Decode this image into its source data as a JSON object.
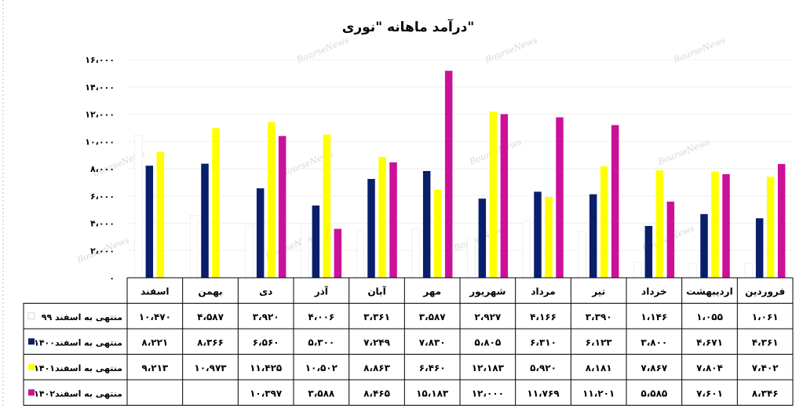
{
  "watermark": "BourseNews",
  "chart_data": {
    "type": "bar",
    "title": "درآمد ماهانه \"نوری\"",
    "xlabel": "",
    "ylabel": "",
    "ylim": [
      0,
      16000
    ],
    "y_ticks": [
      0,
      2000,
      4000,
      6000,
      8000,
      10000,
      12000,
      14000,
      16000
    ],
    "y_tick_labels": [
      "۰",
      "۲،۰۰۰",
      "۴،۰۰۰",
      "۶،۰۰۰",
      "۸،۰۰۰",
      "۱۰،۰۰۰",
      "۱۲،۰۰۰",
      "۱۴،۰۰۰",
      "۱۶،۰۰۰"
    ],
    "grid": true,
    "legend": "in-table",
    "categories": [
      "فروردین",
      "اردیبهشت",
      "خرداد",
      "تیر",
      "مرداد",
      "شهریور",
      "مهر",
      "آبان",
      "آذر",
      "دی",
      "بهمن",
      "اسفند"
    ],
    "series": [
      {
        "name": "منتهی به اسفند ۹۹",
        "color": "#ffffff",
        "values": [
          1061,
          1055,
          1146,
          3390,
          4166,
          2927,
          3587,
          3361,
          4006,
          3920,
          4587,
          10470
        ],
        "labels": [
          "۱،۰۶۱",
          "۱،۰۵۵",
          "۱،۱۴۶",
          "۳،۳۹۰",
          "۴،۱۶۶",
          "۲،۹۲۷",
          "۳،۵۸۷",
          "۳،۳۶۱",
          "۴،۰۰۶",
          "۳،۹۲۰",
          "۴،۵۸۷",
          "۱۰،۴۷۰"
        ]
      },
      {
        "name": "منتهی به اسفند۱۴۰۰",
        "color": "#0a1f6b",
        "values": [
          4361,
          4671,
          3800,
          6123,
          6310,
          5805,
          7830,
          7249,
          5300,
          6560,
          8366,
          8221
        ],
        "labels": [
          "۴،۳۶۱",
          "۴،۶۷۱",
          "۳،۸۰۰",
          "۶،۱۲۳",
          "۶،۳۱۰",
          "۵،۸۰۵",
          "۷،۸۳۰",
          "۷،۲۴۹",
          "۵،۳۰۰",
          "۶،۵۶۰",
          "۸،۳۶۶",
          "۸،۲۲۱"
        ]
      },
      {
        "name": "منتهی به اسفند۱۴۰۱",
        "color": "#ffff00",
        "values": [
          7402,
          7804,
          7867,
          8181,
          5920,
          12183,
          6460,
          8863,
          10502,
          11425,
          10973,
          9213
        ],
        "labels": [
          "۷،۴۰۲",
          "۷،۸۰۴",
          "۷،۸۶۷",
          "۸،۱۸۱",
          "۵،۹۲۰",
          "۱۲،۱۸۳",
          "۶،۴۶۰",
          "۸،۸۶۳",
          "۱۰،۵۰۲",
          "۱۱،۴۲۵",
          "۱۰،۹۷۳",
          "۹،۲۱۳"
        ]
      },
      {
        "name": "منتهی به اسفند۱۴۰۲",
        "color": "#cc1199",
        "values": [
          8346,
          7601,
          5585,
          11201,
          11769,
          12000,
          15183,
          8465,
          3588,
          10397,
          null,
          null
        ],
        "labels": [
          "۸،۳۴۶",
          "۷،۶۰۱",
          "۵،۵۸۵",
          "۱۱،۲۰۱",
          "۱۱،۷۶۹",
          "۱۲،۰۰۰",
          "۱۵،۱۸۳",
          "۸،۴۶۵",
          "۳،۵۸۸",
          "۱۰،۳۹۷",
          "",
          ""
        ]
      }
    ]
  }
}
